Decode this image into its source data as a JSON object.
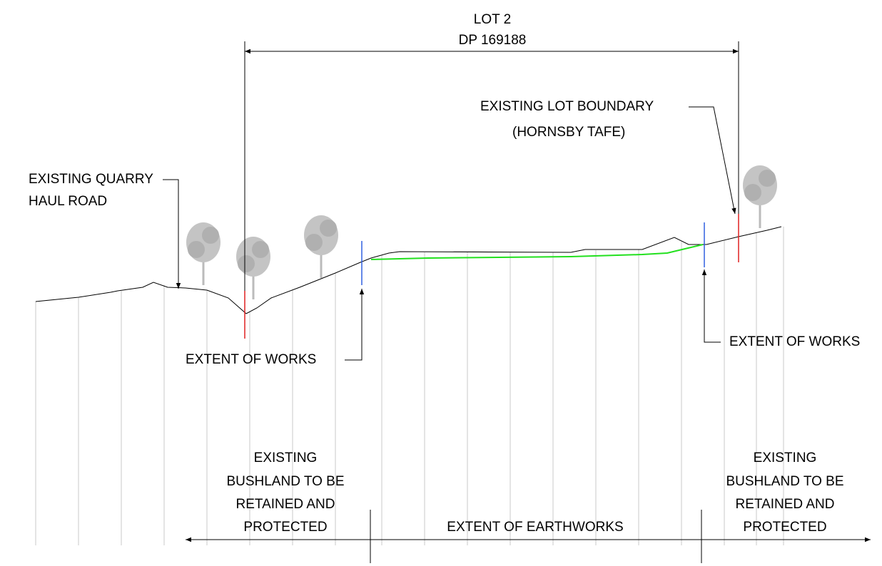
{
  "dimension": {
    "lines": [
      "LOT 2",
      "DP 169188"
    ]
  },
  "callouts": [
    {
      "lines": [
        "EXISTING QUARRY",
        "HAUL ROAD"
      ]
    },
    {
      "lines": [
        "EXISTING LOT BOUNDARY",
        "(HORNSBY TAFE)"
      ]
    },
    {
      "lines": [
        "EXTENT OF WORKS"
      ]
    },
    {
      "lines": [
        "EXTENT OF WORKS"
      ]
    }
  ],
  "zones": [
    {
      "lines": [
        "EXISTING",
        "BUSHLAND TO BE",
        "RETAINED AND",
        "PROTECTED"
      ]
    },
    {
      "lines": [
        "EXTENT OF EARTHWORKS"
      ]
    },
    {
      "lines": [
        "EXISTING",
        "BUSHLAND TO BE",
        "RETAINED AND",
        "PROTECTED"
      ]
    }
  ]
}
